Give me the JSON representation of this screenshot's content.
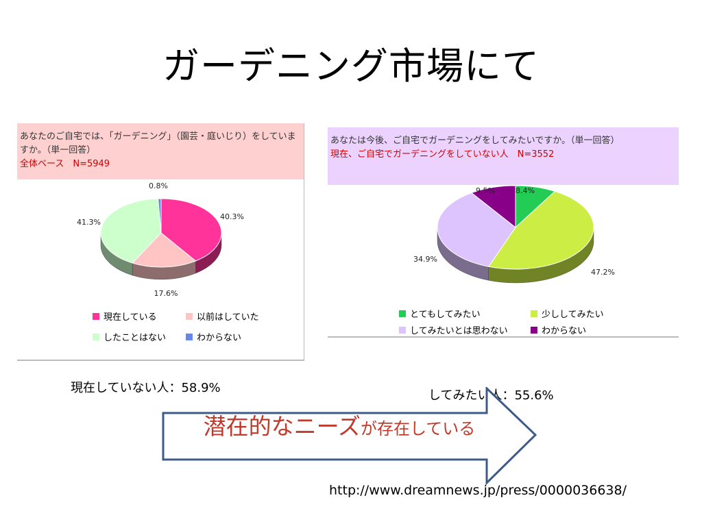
{
  "title": "ガーデニング市場にて",
  "chart_data": [
    {
      "type": "pie",
      "question": "あなたのご自宅では、「ガーデニング」（園芸・庭いじり）をしていますか。（単一回答）",
      "base": "全体ベース　N=5949",
      "categories": [
        "現在している",
        "以前はしていた",
        "したことはない",
        "わからない"
      ],
      "values": [
        40.3,
        17.6,
        41.3,
        0.8
      ],
      "value_labels": [
        "40.3%",
        "17.6%",
        "41.3%",
        "0.8%"
      ],
      "colors": [
        "#ff3399",
        "#ffc4c4",
        "#ccffcc",
        "#6688ee"
      ],
      "legend_placement": "bottom"
    },
    {
      "type": "pie",
      "question": "あなたは今後、ご自宅でガーデニングをしてみたいですか。（単一回答）",
      "base": "現在、ご自宅でガーデニングをしていない人　N=3552",
      "categories": [
        "とてもしてみたい",
        "少ししてみたい",
        "してみたいとは思わない",
        "わからない"
      ],
      "values": [
        8.4,
        47.2,
        34.9,
        9.5
      ],
      "value_labels": [
        "8.4%",
        "47.2%",
        "34.9%",
        "9.5%"
      ],
      "colors": [
        "#22cc55",
        "#ccee44",
        "#ddc4ff",
        "#880088"
      ],
      "legend_placement": "bottom"
    }
  ],
  "caption1": "現在していない人：58.9%",
  "caption2": "してみたい人：55.6%",
  "arrow_text_big": "潜在的なニーズ",
  "arrow_text_rest": "が存在している",
  "url": "http://www.dreamnews.jp/press/0000036638/"
}
